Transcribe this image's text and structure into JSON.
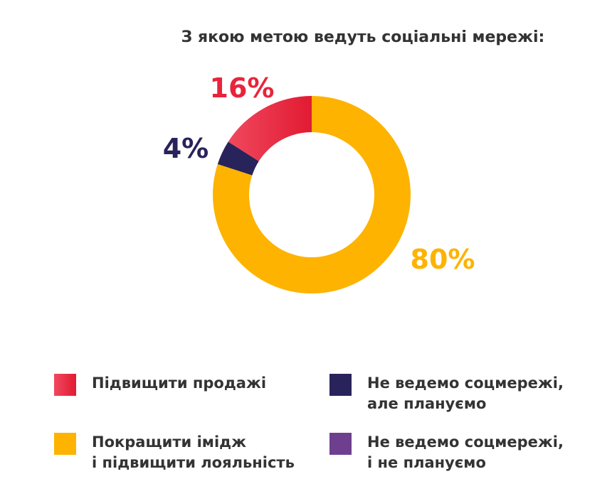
{
  "chart_data": {
    "type": "pie",
    "title": "З якою метою ведуть соціальні мережі:",
    "categories": [
      "Підвищити продажі",
      "Не ведемо соцмережі, але плануємо",
      "Покращити імідж і підвищити лояльність",
      "Не ведемо соцмережі, і не плануємо"
    ],
    "values": [
      16,
      4,
      80,
      0
    ],
    "value_labels": [
      "16%",
      "4%",
      "80%",
      ""
    ],
    "colors": [
      "#E8243C",
      "#28235A",
      "#FDB300",
      "#6E3F8E"
    ],
    "legend_position": "bottom",
    "donut": true
  },
  "legend": [
    {
      "line1": "Підвищити продажі",
      "line2": "",
      "color": "#E8243C"
    },
    {
      "line1": "Не ведемо соцмережі,",
      "line2": "але плануємо",
      "color": "#28235A"
    },
    {
      "line1": "Покращити імідж",
      "line2": "і підвищити лояльність",
      "color": "#FDB300"
    },
    {
      "line1": "Не ведемо соцмережі,",
      "line2": "і не плануємо",
      "color": "#6E3F8E"
    }
  ]
}
